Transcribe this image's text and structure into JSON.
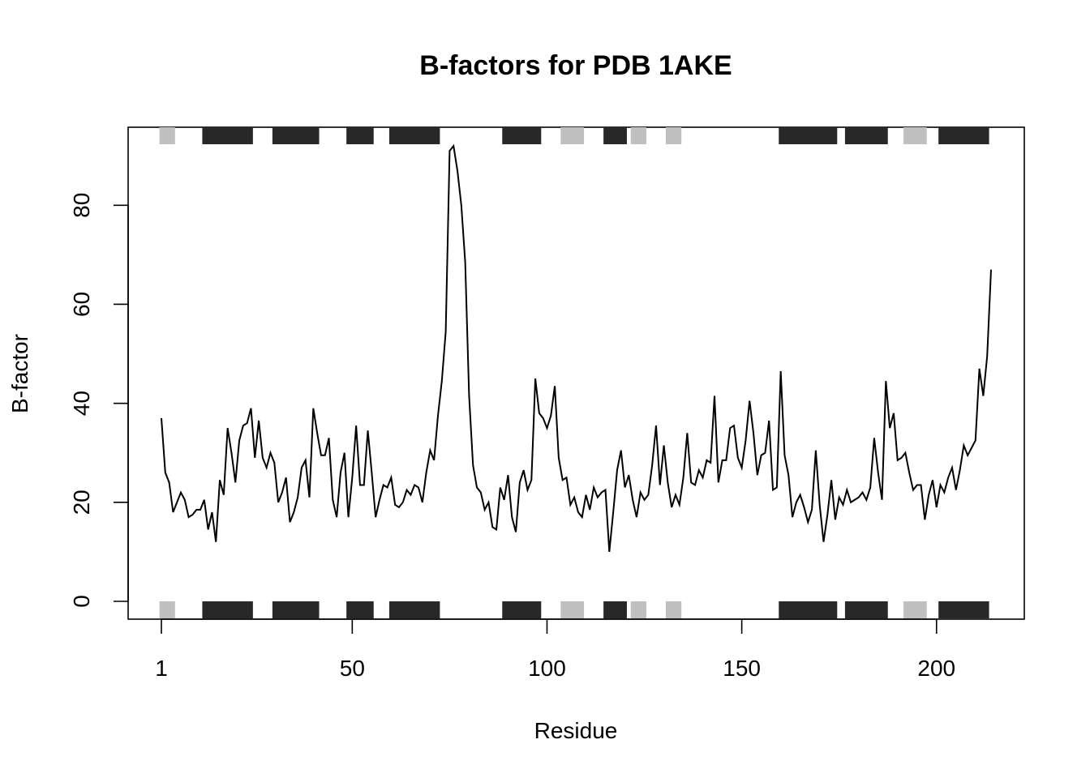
{
  "chart_data": {
    "type": "line",
    "title": "B-factors for PDB 1AKE",
    "xlabel": "Residue",
    "ylabel": "B-factor",
    "xlim": [
      1,
      214
    ],
    "ylim": [
      0,
      92
    ],
    "x_ticks": [
      1,
      50,
      100,
      150,
      200
    ],
    "y_ticks": [
      0,
      20,
      40,
      60,
      80
    ],
    "grid": false,
    "legend": "none",
    "line_color": "#000000",
    "series": [
      {
        "x_start": 1,
        "values": [
          37,
          26,
          24,
          18,
          20,
          22,
          20.5,
          17,
          17.5,
          18.5,
          18.5,
          20.5,
          14.5,
          18,
          12,
          24.5,
          21.5,
          35,
          30,
          24,
          32.5,
          35.5,
          36,
          39,
          29,
          36.5,
          29,
          27,
          30,
          28,
          20,
          22,
          25,
          16,
          18,
          21,
          27,
          28.5,
          21,
          39,
          34,
          29.5,
          29.5,
          33,
          20.5,
          17,
          26,
          30,
          17,
          25,
          35.5,
          23.5,
          23.5,
          34.5,
          26,
          17,
          20.5,
          23.5,
          23,
          25,
          19.5,
          19,
          20,
          22.5,
          21.5,
          23.5,
          23,
          20,
          26,
          30.5,
          28.5,
          37.5,
          44.5,
          54.5,
          91,
          92,
          87,
          80,
          68.5,
          41.5,
          27.5,
          23,
          22,
          18.5,
          20,
          15,
          14.5,
          23,
          20.5,
          25.5,
          17,
          14,
          24,
          26.5,
          22.5,
          24.5,
          45,
          38,
          37,
          35,
          37.5,
          43.5,
          29,
          24.5,
          25,
          19.5,
          21,
          18,
          17,
          21.5,
          18.5,
          23,
          21,
          22,
          22.5,
          10,
          18,
          26.5,
          30.5,
          23,
          25.5,
          20.5,
          17,
          22,
          20.5,
          21.5,
          27.5,
          35.5,
          23.5,
          31.5,
          24,
          19,
          21.5,
          19.5,
          25,
          34,
          24,
          23.5,
          26.5,
          25,
          28.5,
          28,
          41.5,
          24,
          28.5,
          28.5,
          35,
          35.5,
          29,
          27,
          32.5,
          40.5,
          34,
          25.5,
          29.5,
          30,
          36.5,
          22.5,
          23,
          46.5,
          29.5,
          25.5,
          17,
          20,
          21.5,
          19,
          16,
          18.5,
          30.5,
          19.5,
          12,
          17.5,
          24.5,
          16.5,
          21,
          19.5,
          22.5,
          20,
          20.5,
          21,
          22,
          20.5,
          23,
          33,
          26,
          20.5,
          44.5,
          35,
          38,
          28.5,
          29,
          30,
          26,
          22.5,
          23.5,
          23.5,
          16.5,
          21.5,
          24.5,
          19,
          23.5,
          22,
          25,
          27,
          22.5,
          26.5,
          31.5,
          29.5,
          31,
          32.5,
          47,
          41.5,
          49.5,
          67
        ]
      }
    ],
    "secondary_structure": {
      "helix_color": "#282828",
      "sheet_color": "#c0c0c0",
      "segments": [
        {
          "type": "sheet",
          "start": 1,
          "end": 4
        },
        {
          "type": "helix",
          "start": 12,
          "end": 24
        },
        {
          "type": "helix",
          "start": 30,
          "end": 41
        },
        {
          "type": "helix",
          "start": 49,
          "end": 55
        },
        {
          "type": "helix",
          "start": 60,
          "end": 72
        },
        {
          "type": "helix",
          "start": 89,
          "end": 98
        },
        {
          "type": "sheet",
          "start": 104,
          "end": 109
        },
        {
          "type": "helix",
          "start": 115,
          "end": 120
        },
        {
          "type": "sheet",
          "start": 122,
          "end": 125
        },
        {
          "type": "sheet",
          "start": 131,
          "end": 134
        },
        {
          "type": "helix",
          "start": 160,
          "end": 174
        },
        {
          "type": "helix",
          "start": 177,
          "end": 187
        },
        {
          "type": "sheet",
          "start": 192,
          "end": 197
        },
        {
          "type": "helix",
          "start": 201,
          "end": 213
        }
      ]
    }
  }
}
